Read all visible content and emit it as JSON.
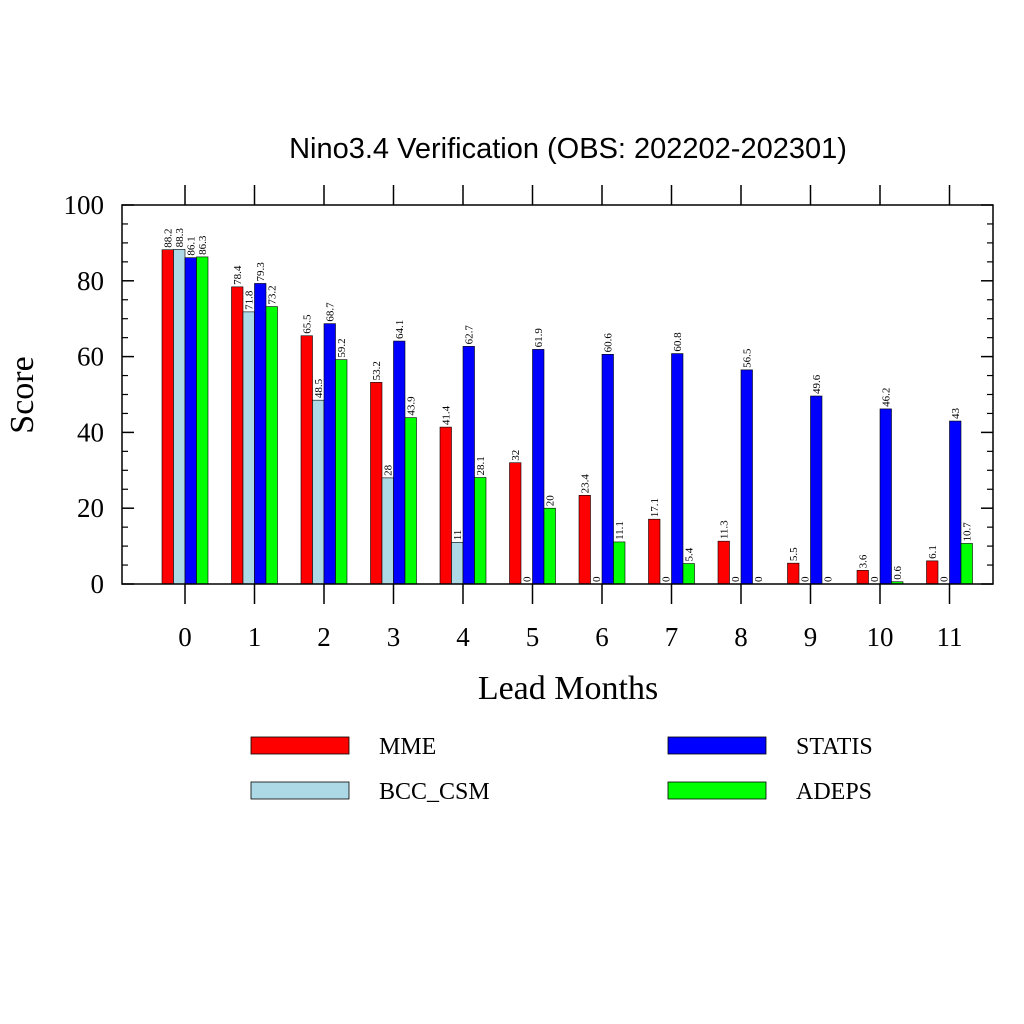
{
  "chart_data": {
    "type": "bar",
    "title": "Nino3.4 Verification (OBS: 202202-202301)",
    "xlabel": "Lead Months",
    "ylabel": "Score",
    "ylim": [
      0,
      100
    ],
    "yticks": [
      0,
      20,
      40,
      60,
      80,
      100
    ],
    "categories": [
      "0",
      "1",
      "2",
      "3",
      "4",
      "5",
      "6",
      "7",
      "8",
      "9",
      "10",
      "11"
    ],
    "series": [
      {
        "name": "MME",
        "color": "#ff0000",
        "values": [
          88.2,
          78.4,
          65.5,
          53.2,
          41.4,
          32,
          23.4,
          17.1,
          11.3,
          5.5,
          3.6,
          6.1
        ]
      },
      {
        "name": "BCC_CSM",
        "color": "#add8e6",
        "values": [
          88.3,
          71.8,
          48.5,
          28,
          11,
          0,
          0,
          0,
          0,
          0,
          0,
          0
        ]
      },
      {
        "name": "STATIS",
        "color": "#0000ff",
        "values": [
          86.1,
          79.3,
          68.7,
          64.1,
          62.7,
          61.9,
          60.6,
          60.8,
          56.5,
          49.6,
          46.2,
          43
        ]
      },
      {
        "name": "ADEPS",
        "color": "#00ff00",
        "values": [
          86.3,
          73.2,
          59.2,
          43.9,
          28.1,
          20,
          11.1,
          5.4,
          0,
          0,
          0.6,
          10.7
        ]
      }
    ],
    "legend_position": "bottom",
    "grid": false
  }
}
